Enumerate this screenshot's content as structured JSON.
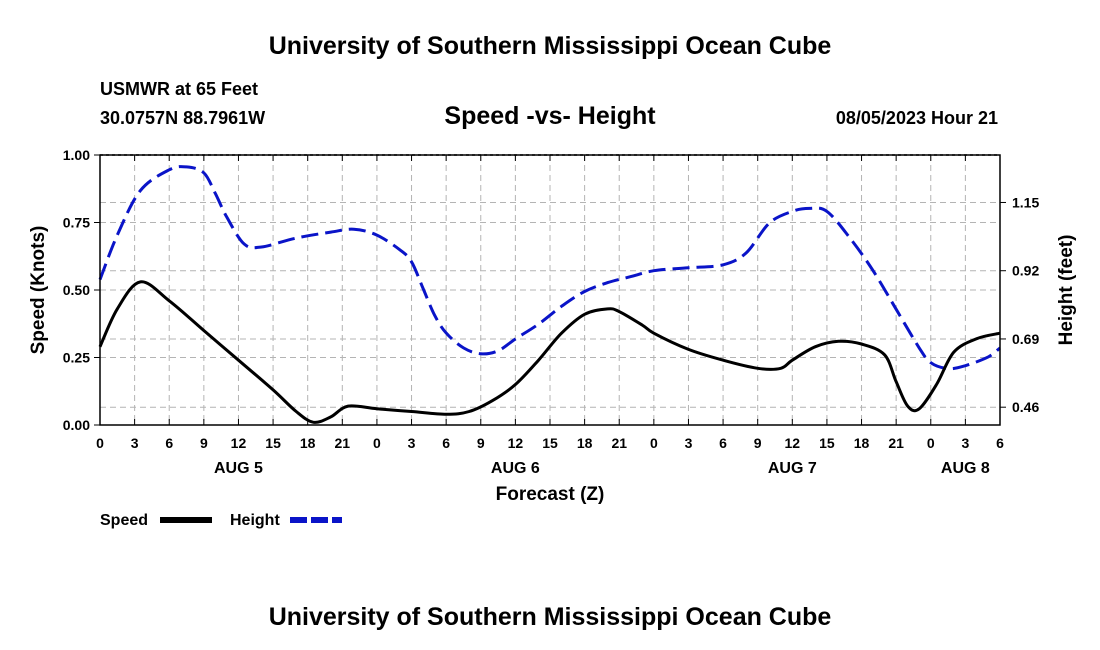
{
  "header": {
    "title": "University of Southern Mississippi Ocean Cube",
    "station": "USMWR at 65 Feet",
    "coords": "30.0757N  88.7961W",
    "chart_title": "Speed -vs- Height",
    "datetime": "08/05/2023 Hour 21"
  },
  "footer": {
    "title": "University of Southern Mississippi Ocean Cube"
  },
  "colors": {
    "speed": "#000000",
    "height": "#0a14c8",
    "grid": "#b4b4b4"
  },
  "chart_data": {
    "type": "line",
    "title": "Speed -vs- Height",
    "xlabel": "Forecast (Z)",
    "ylabel_left": "Speed (Knots)",
    "ylabel_right": "Height (feet)",
    "x_unit": "forecast hours from AUG 5 00Z",
    "xlim": [
      0,
      78
    ],
    "ylim_left": [
      0,
      1.0
    ],
    "ylim_right": [
      0.4,
      1.31
    ],
    "x_ticks": [
      0,
      3,
      6,
      9,
      12,
      15,
      18,
      21,
      24,
      27,
      30,
      33,
      36,
      39,
      42,
      45,
      48,
      51,
      54,
      57,
      60,
      63,
      66,
      69,
      72,
      75,
      78
    ],
    "x_tick_labels": [
      "0",
      "3",
      "6",
      "9",
      "12",
      "15",
      "18",
      "21",
      "0",
      "3",
      "6",
      "9",
      "12",
      "15",
      "18",
      "21",
      "0",
      "3",
      "6",
      "9",
      "12",
      "15",
      "18",
      "21",
      "0",
      "3",
      "6"
    ],
    "left_ticks": [
      0,
      0.25,
      0.5,
      0.75,
      1.0
    ],
    "left_tick_labels": [
      "0.00",
      "0.25",
      "0.50",
      "0.75",
      "1.00"
    ],
    "right_ticks": [
      0.46,
      0.69,
      0.92,
      1.15
    ],
    "right_tick_labels": [
      "0.46",
      "0.69",
      "0.92",
      "1.15"
    ],
    "date_labels": [
      {
        "x": 12,
        "text": "AUG 5"
      },
      {
        "x": 36,
        "text": "AUG 6"
      },
      {
        "x": 60,
        "text": "AUG 7"
      },
      {
        "x": 75,
        "text": "AUG 8"
      }
    ],
    "grid": true,
    "legend_position": "bottom-left",
    "series": [
      {
        "name": "Speed",
        "axis": "left",
        "style": "solid",
        "points": [
          [
            0,
            0.29
          ],
          [
            1.5,
            0.43
          ],
          [
            3.5,
            0.53
          ],
          [
            6,
            0.46
          ],
          [
            9,
            0.35
          ],
          [
            12,
            0.24
          ],
          [
            15,
            0.13
          ],
          [
            17,
            0.05
          ],
          [
            18.5,
            0.01
          ],
          [
            20,
            0.03
          ],
          [
            21.5,
            0.07
          ],
          [
            24,
            0.06
          ],
          [
            27,
            0.05
          ],
          [
            30,
            0.04
          ],
          [
            32,
            0.05
          ],
          [
            34,
            0.09
          ],
          [
            36,
            0.15
          ],
          [
            38,
            0.24
          ],
          [
            40,
            0.34
          ],
          [
            42,
            0.41
          ],
          [
            44,
            0.43
          ],
          [
            45,
            0.42
          ],
          [
            47,
            0.37
          ],
          [
            48,
            0.34
          ],
          [
            51,
            0.28
          ],
          [
            54,
            0.24
          ],
          [
            57,
            0.21
          ],
          [
            59,
            0.21
          ],
          [
            60,
            0.24
          ],
          [
            62,
            0.29
          ],
          [
            64,
            0.31
          ],
          [
            66,
            0.3
          ],
          [
            68,
            0.26
          ],
          [
            69,
            0.16
          ],
          [
            70,
            0.07
          ],
          [
            71,
            0.06
          ],
          [
            72.5,
            0.15
          ],
          [
            74,
            0.27
          ],
          [
            76,
            0.32
          ],
          [
            78,
            0.34
          ]
        ]
      },
      {
        "name": "Height",
        "axis": "right",
        "style": "dashed",
        "points": [
          [
            0,
            0.89
          ],
          [
            1.5,
            1.04
          ],
          [
            3.5,
            1.19
          ],
          [
            6,
            1.26
          ],
          [
            7.5,
            1.27
          ],
          [
            9,
            1.25
          ],
          [
            10,
            1.18
          ],
          [
            11,
            1.1
          ],
          [
            12.5,
            1.01
          ],
          [
            14,
            1.0
          ],
          [
            17,
            1.03
          ],
          [
            20,
            1.05
          ],
          [
            22,
            1.06
          ],
          [
            24,
            1.04
          ],
          [
            26,
            0.99
          ],
          [
            27,
            0.95
          ],
          [
            28,
            0.86
          ],
          [
            29,
            0.77
          ],
          [
            30,
            0.71
          ],
          [
            31.5,
            0.66
          ],
          [
            33,
            0.64
          ],
          [
            34.5,
            0.65
          ],
          [
            36,
            0.69
          ],
          [
            38,
            0.74
          ],
          [
            40,
            0.8
          ],
          [
            42,
            0.85
          ],
          [
            44,
            0.88
          ],
          [
            46,
            0.9
          ],
          [
            48,
            0.92
          ],
          [
            51,
            0.93
          ],
          [
            54,
            0.94
          ],
          [
            56,
            0.98
          ],
          [
            58,
            1.08
          ],
          [
            60,
            1.12
          ],
          [
            61.5,
            1.13
          ],
          [
            63,
            1.12
          ],
          [
            65,
            1.03
          ],
          [
            67,
            0.92
          ],
          [
            69,
            0.79
          ],
          [
            71,
            0.66
          ],
          [
            72,
            0.61
          ],
          [
            73.5,
            0.59
          ],
          [
            75,
            0.6
          ],
          [
            77,
            0.63
          ],
          [
            78,
            0.66
          ]
        ]
      }
    ]
  },
  "legend": {
    "speed_label": "Speed",
    "height_label": "Height"
  }
}
